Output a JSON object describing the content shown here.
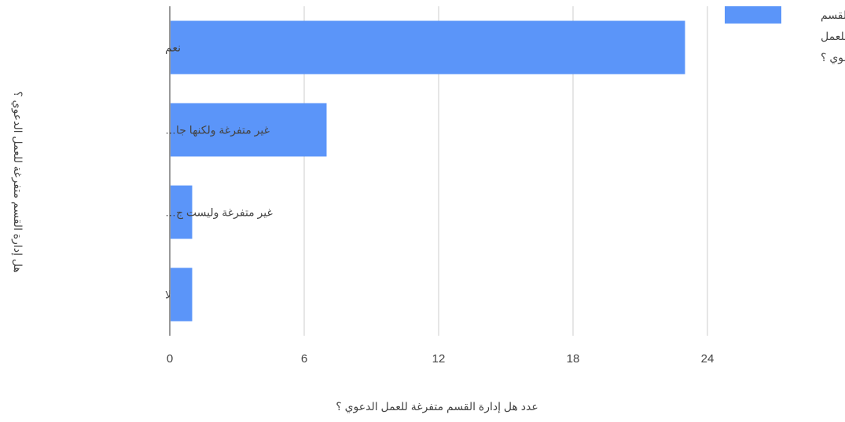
{
  "chart_data": {
    "type": "bar",
    "orientation": "horizontal",
    "categories": [
      "نعم",
      "غير متفرغة ولكنها جا…",
      "غير متفرغة وليست ج…",
      "لا"
    ],
    "series": [
      {
        "name_lines": [
          "هل إدارة القسم",
          "متفرغة للعمل",
          "الدعوي ؟"
        ],
        "values": [
          23,
          7,
          1,
          1
        ],
        "color": "#5b95f9"
      }
    ],
    "xlabel": "عدد هل إدارة القسم متفرغة للعمل الدعوي ؟",
    "ylabel": "هل إدارة القسم متفرغة للعمل الدعوي ؟",
    "xlim": [
      0,
      24
    ],
    "xticks": [
      0,
      6,
      12,
      18,
      24
    ],
    "xtick_labels": [
      "0",
      "6",
      "12",
      "18",
      "24"
    ],
    "grid": true,
    "legend_position": "right",
    "colors": {
      "bar": "#5b95f9",
      "grid": "#cccccc",
      "axis": "#333333",
      "text": "#444444"
    }
  }
}
